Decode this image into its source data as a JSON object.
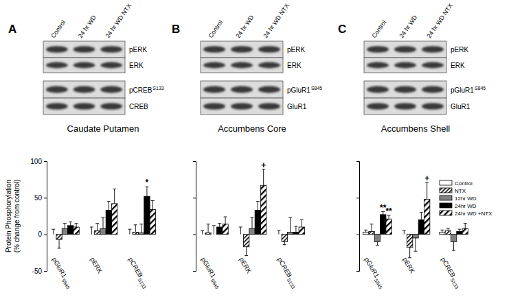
{
  "chart_data": [
    {
      "type": "bar",
      "panel": "A",
      "title": "Caudate Putamen",
      "ylabel": [
        "Protein Phosphorylation",
        "(% change from control)"
      ],
      "blot": {
        "lanes": [
          "Control",
          "24 hr WD",
          "24 hr WD NTX"
        ],
        "rows": [
          "pERK",
          "ERK",
          "pCREB S133",
          "CREB"
        ]
      },
      "categories": [
        "pGluR1 S845",
        "pERK",
        "pCREB S133"
      ],
      "series": [
        {
          "color": "#ffffff",
          "values": [
            0,
            0,
            0
          ],
          "errors": [
            7,
            10,
            7
          ]
        },
        {
          "color": "#ffffff",
          "marker": "dense-hatch",
          "values": [
            -7,
            5,
            3
          ],
          "errors": [
            12,
            10,
            10
          ]
        },
        {
          "color": "#808080",
          "values": [
            8,
            8,
            2
          ],
          "errors": [
            7,
            15,
            12
          ]
        },
        {
          "color": "#000000",
          "values": [
            12,
            33,
            52
          ],
          "errors": [
            5,
            12,
            13
          ],
          "significance": [
            null,
            null,
            "*"
          ]
        },
        {
          "color": "#ffffff",
          "marker": "wide-hatch",
          "values": [
            10,
            42,
            34
          ],
          "errors": [
            5,
            20,
            12
          ]
        }
      ],
      "ylim": [
        -50,
        100
      ],
      "yticks": [
        -50,
        0,
        50,
        100
      ]
    },
    {
      "type": "bar",
      "panel": "B",
      "title": "Accumbens Core",
      "blot": {
        "lanes": [
          "Control",
          "24 hr WD",
          "24 hr WD NTX"
        ],
        "rows": [
          "pERK",
          "ERK",
          "pGluR1 S845",
          "GluR1"
        ]
      },
      "categories": [
        "pGluR1 S845",
        "pERK",
        "pCREB S133"
      ],
      "series": [
        {
          "color": "#ffffff",
          "values": [
            0,
            0,
            0
          ],
          "errors": [
            5,
            10,
            5
          ]
        },
        {
          "color": "#ffffff",
          "marker": "dense-hatch",
          "values": [
            2,
            -17,
            -10
          ],
          "errors": [
            12,
            12,
            4
          ]
        },
        {
          "color": "#808080",
          "values": [
            0,
            8,
            3
          ],
          "errors": [
            12,
            15,
            20
          ]
        },
        {
          "color": "#000000",
          "values": [
            10,
            33,
            3
          ],
          "errors": [
            5,
            12,
            8
          ]
        },
        {
          "color": "#ffffff",
          "marker": "wide-hatch",
          "values": [
            14,
            67,
            10
          ],
          "errors": [
            10,
            22,
            10
          ],
          "significance": [
            null,
            "+",
            null
          ]
        }
      ],
      "ylim": [
        -50,
        100
      ],
      "yticks": [
        -50,
        0,
        50,
        100
      ],
      "tick_labels": "x"
    },
    {
      "type": "bar",
      "panel": "C",
      "title": "Accumbens Shell",
      "blot": {
        "lanes": [
          "Control",
          "24 hr WD",
          "24 hr WD NTX"
        ],
        "rows": [
          "pERK",
          "ERK",
          "pGluR1 S845",
          "GluR1"
        ]
      },
      "categories": [
        "pGluR1 S845",
        "pERK",
        "pCREB S133"
      ],
      "series": [
        {
          "name": "Control",
          "color": "#ffffff",
          "values": [
            3,
            0,
            3
          ],
          "errors": [
            3,
            5,
            3
          ]
        },
        {
          "name": "NTX",
          "color": "#ffffff",
          "marker": "dense-hatch",
          "values": [
            4,
            -18,
            5
          ],
          "errors": [
            10,
            14,
            3
          ]
        },
        {
          "name": "12hr WD",
          "color": "#808080",
          "values": [
            -10,
            -5,
            -10
          ],
          "errors": [
            5,
            18,
            12
          ]
        },
        {
          "name": "24hr WD",
          "color": "#000000",
          "values": [
            27,
            20,
            4
          ],
          "errors": [
            4,
            10,
            3
          ],
          "significance": [
            "**",
            null,
            null
          ]
        },
        {
          "name": "24hr WD +NTX",
          "color": "#ffffff",
          "marker": "wide-hatch",
          "values": [
            21,
            48,
            8
          ],
          "errors": [
            5,
            23,
            7
          ],
          "significance": [
            "**",
            "+",
            null
          ]
        }
      ],
      "ylim": [
        -50,
        100
      ],
      "yticks": [
        -50,
        0,
        50,
        100
      ],
      "tick_labels": "x",
      "legend": "top-right"
    }
  ]
}
